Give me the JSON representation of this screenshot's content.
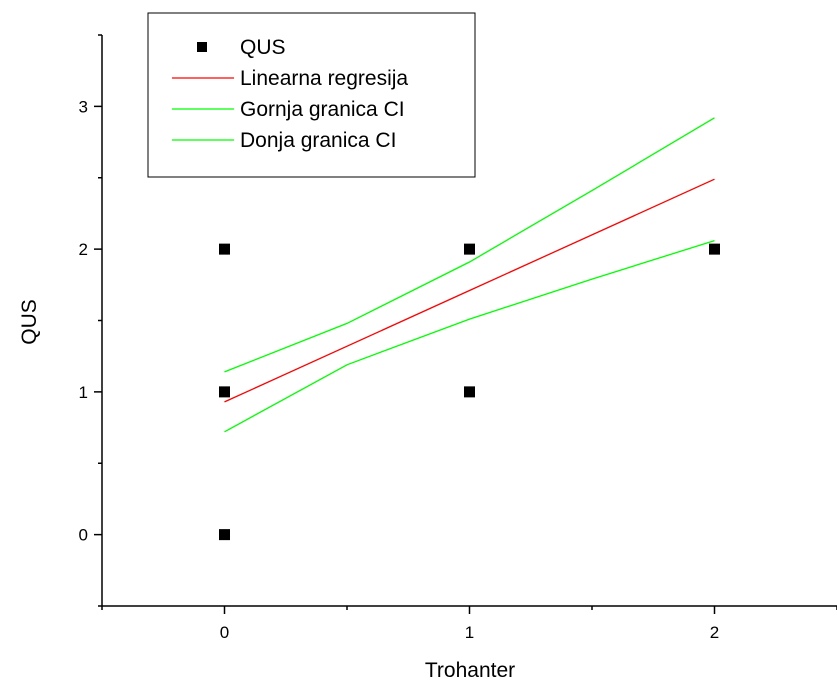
{
  "chart_data": {
    "type": "scatter",
    "xlabel": "Trohanter",
    "ylabel": "QUS",
    "xlim": [
      -0.5,
      2.5
    ],
    "ylim": [
      -0.5,
      3.5
    ],
    "x_ticks": [
      "0",
      "1",
      "2"
    ],
    "y_ticks": [
      "0",
      "1",
      "2",
      "3"
    ],
    "grid": false,
    "legend_position": "top-left",
    "series": [
      {
        "name": "QUS",
        "kind": "points",
        "marker": "square",
        "color": "#000000",
        "points": [
          [
            0,
            0
          ],
          [
            0,
            1
          ],
          [
            0,
            2
          ],
          [
            1,
            1
          ],
          [
            1,
            2
          ],
          [
            2,
            2
          ]
        ]
      },
      {
        "name": "Linearna regresija",
        "kind": "line",
        "color": "#ff0000",
        "points": [
          [
            0,
            0.93
          ],
          [
            1,
            1.71
          ],
          [
            2,
            2.49
          ]
        ]
      },
      {
        "name": "Gornja granica CI",
        "kind": "line",
        "color": "#00ff00",
        "points": [
          [
            0,
            1.14
          ],
          [
            0.5,
            1.48
          ],
          [
            1,
            1.91
          ],
          [
            1.5,
            2.41
          ],
          [
            2,
            2.92
          ]
        ]
      },
      {
        "name": "Donja granica CI",
        "kind": "line",
        "color": "#00ff00",
        "points": [
          [
            0,
            0.72
          ],
          [
            0.5,
            1.19
          ],
          [
            1,
            1.51
          ],
          [
            1.5,
            1.79
          ],
          [
            2,
            2.06
          ]
        ]
      }
    ]
  }
}
